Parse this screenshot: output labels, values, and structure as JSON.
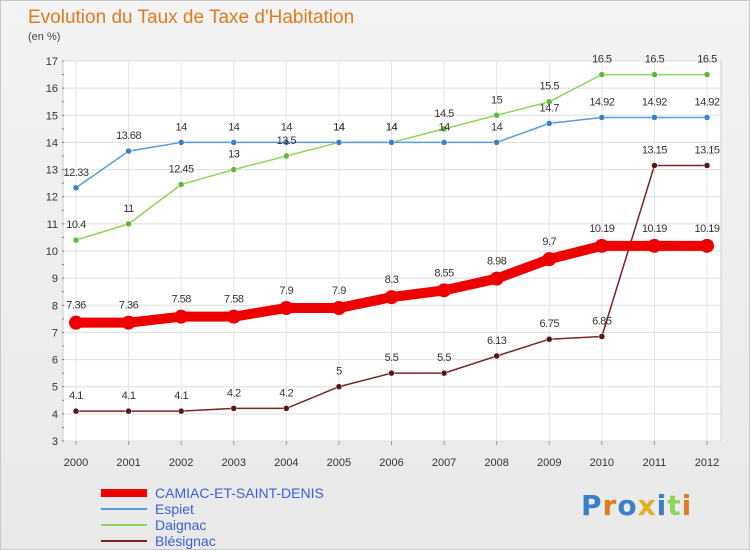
{
  "header": {
    "title": "Evolution du Taux de Taxe d'Habitation",
    "unit": "(en %)"
  },
  "logo": {
    "text": "Proxiti"
  },
  "chart_data": {
    "type": "line",
    "title": "Evolution du Taux de Taxe d'Habitation",
    "ylabel": "(en %)",
    "xlabel": "",
    "ylim": [
      3,
      17
    ],
    "yticks": [
      "3",
      "4",
      "5",
      "6",
      "7",
      "8",
      "9",
      "10",
      "11",
      "12",
      "13",
      "14",
      "15",
      "16",
      "17"
    ],
    "categories": [
      "2000",
      "2001",
      "2002",
      "2003",
      "2004",
      "2005",
      "2006",
      "2007",
      "2008",
      "2009",
      "2010",
      "2011",
      "2012"
    ],
    "grid": true,
    "legend": "bottom-left",
    "series": [
      {
        "name": "CAMIAC-ET-SAINT-DENIS",
        "color": "#ee0000",
        "values": [
          7.36,
          7.36,
          7.58,
          7.58,
          7.9,
          7.9,
          8.3,
          8.55,
          8.98,
          9.7,
          10.19,
          10.19,
          10.19
        ],
        "labels": [
          "7.36",
          "7.36",
          "7.58",
          "7.58",
          "7.9",
          "7.9",
          "8.3",
          "8.55",
          "8.98",
          "9.7",
          "10.19",
          "10.19",
          "10.19"
        ]
      },
      {
        "name": "Espiet",
        "color": "#5a9ad6",
        "values": [
          12.33,
          13.68,
          14,
          14,
          14,
          14,
          14,
          14,
          14,
          14.7,
          14.92,
          14.92,
          14.92
        ],
        "labels": [
          "12.33",
          "13.68",
          "14",
          "14",
          "14",
          "14",
          "14",
          "14",
          "14",
          "14.7",
          "14.92",
          "14.92",
          "14.92"
        ]
      },
      {
        "name": "Daignac",
        "color": "#8ed65a",
        "values": [
          10.4,
          11,
          12.45,
          13,
          13.5,
          14,
          14,
          14.5,
          15,
          15.5,
          16.5,
          16.5,
          16.5
        ],
        "labels": [
          "10.4",
          "11",
          "12.45",
          "13",
          "13.5",
          "14",
          "14",
          "14.5",
          "15",
          "15.5",
          "16.5",
          "16.5",
          "16.5"
        ]
      },
      {
        "name": "Blésignac",
        "color": "#7a2424",
        "values": [
          4.1,
          4.1,
          4.1,
          4.2,
          4.2,
          5,
          5.5,
          5.5,
          6.13,
          6.75,
          6.85,
          13.15,
          13.15
        ],
        "labels": [
          "4.1",
          "4.1",
          "4.1",
          "4.2",
          "4.2",
          "5",
          "5.5",
          "5.5",
          "6.13",
          "6.75",
          "6.85",
          "13.15",
          "13.15"
        ]
      }
    ]
  }
}
